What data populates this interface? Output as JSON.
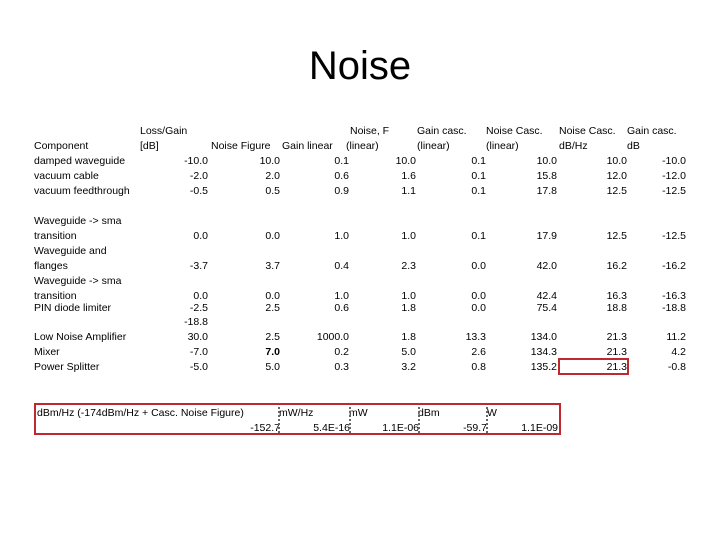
{
  "title": "Noise",
  "headers": {
    "component": "Component",
    "loss_gain": "Loss/Gain",
    "db": "[dB]",
    "noise_figure": "Noise Figure",
    "gain_linear": "Gain linear",
    "noise_f": "Noise, F",
    "noise_f_unit": "(linear)",
    "gain_casc": "Gain casc.",
    "gain_casc_unit": "(linear)",
    "noise_casc": "Noise Casc.",
    "noise_casc_unit": "(linear)",
    "noise_casc2": "Noise Casc.",
    "noise_casc2_unit": "dB/Hz",
    "gain_casc2": "Gain casc.",
    "gain_casc2_unit": "dB"
  },
  "rows": [
    {
      "name1": "damped waveguide",
      "name2": "",
      "loss": "-10.0",
      "nf": "10.0",
      "gl": "0.1",
      "f": "10.0",
      "gc": "0.1",
      "nc": "10.0",
      "ncdb": "10.0",
      "gcdb": "-10.0"
    },
    {
      "name1": "vacuum cable",
      "name2": "",
      "loss": "-2.0",
      "nf": "2.0",
      "gl": "0.6",
      "f": "1.6",
      "gc": "0.1",
      "nc": "15.8",
      "ncdb": "12.0",
      "gcdb": "-12.0"
    },
    {
      "name1": "vacuum feedthrough",
      "name2": "",
      "loss": "-0.5",
      "nf": "0.5",
      "gl": "0.9",
      "f": "1.1",
      "gc": "0.1",
      "nc": "17.8",
      "ncdb": "12.5",
      "gcdb": "-12.5"
    },
    {
      "name1": "Waveguide -> sma",
      "name2": "transition",
      "loss": "0.0",
      "nf": "0.0",
      "gl": "1.0",
      "f": "1.0",
      "gc": "0.1",
      "nc": "17.9",
      "ncdb": "12.5",
      "gcdb": "-12.5"
    },
    {
      "name1": "Waveguide and",
      "name2": "flanges",
      "loss": "-3.7",
      "nf": "3.7",
      "gl": "0.4",
      "f": "2.3",
      "gc": "0.0",
      "nc": "42.0",
      "ncdb": "16.2",
      "gcdb": "-16.2"
    },
    {
      "name1": "Waveguide -> sma",
      "name2": "transition",
      "loss": "0.0",
      "nf": "0.0",
      "gl": "1.0",
      "f": "1.0",
      "gc": "0.0",
      "nc": "42.4",
      "ncdb": "16.3",
      "gcdb": "-16.3"
    },
    {
      "name1": "PIN diode limiter",
      "name2": "",
      "loss": "-2.5",
      "nf": "2.5",
      "gl": "0.6",
      "f": "1.8",
      "gc": "0.0",
      "nc": "75.4",
      "ncdb": "18.8",
      "gcdb": "-18.8"
    },
    {
      "name1": "",
      "name2": "",
      "loss": "-18.8",
      "nf": "",
      "gl": "",
      "f": "",
      "gc": "",
      "nc": "",
      "ncdb": "",
      "gcdb": ""
    },
    {
      "name1": "Low Noise Amplifier",
      "name2": "",
      "loss": "30.0",
      "nf": "2.5",
      "gl": "1000.0",
      "f": "1.8",
      "gc": "13.3",
      "nc": "134.0",
      "ncdb": "21.3",
      "gcdb": "11.2"
    },
    {
      "name1": "Mixer",
      "name2": "",
      "loss": "-7.0",
      "nf": "7.0",
      "gl": "0.2",
      "f": "5.0",
      "gc": "2.6",
      "nc": "134.3",
      "ncdb": "21.3",
      "gcdb": "4.2"
    },
    {
      "name1": "Power Splitter",
      "name2": "",
      "loss": "-5.0",
      "nf": "5.0",
      "gl": "0.3",
      "f": "3.2",
      "gc": "0.8",
      "nc": "135.2",
      "ncdb": "21.3",
      "gcdb": "-0.8"
    }
  ],
  "summary": {
    "label": "dBm/Hz (-174dBm/Hz + Casc. Noise Figure)",
    "mw_hz_label": "mW/Hz",
    "mw_label": "mW",
    "dbm_label": "dBm",
    "w_label": "W",
    "dbm_hz_value": "-152.7",
    "mw_hz_value": "5.4E-16",
    "mw_value": "1.1E-06",
    "dbm_value": "-59.7",
    "w_value": "1.1E-09"
  },
  "colors": {
    "highlight": "#c0282f"
  }
}
